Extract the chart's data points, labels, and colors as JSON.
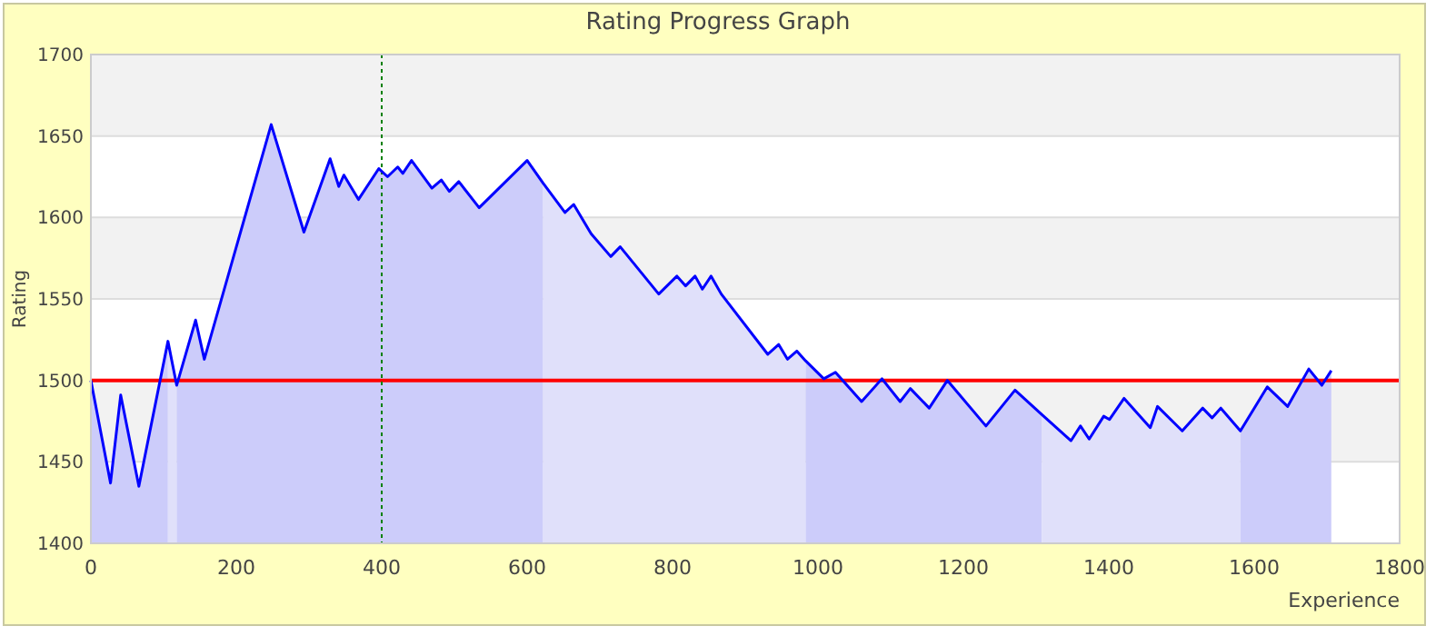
{
  "chart_data": {
    "type": "area",
    "title": "Rating Progress Graph",
    "xlabel": "Experience",
    "ylabel": "Rating",
    "xlim": [
      0,
      1800
    ],
    "xticks": [
      0,
      200,
      400,
      600,
      800,
      1000,
      1200,
      1400,
      1600,
      1800
    ],
    "ylim": [
      1400,
      1700
    ],
    "yticks": [
      1400,
      1450,
      1500,
      1550,
      1600,
      1650,
      1700
    ],
    "grid": "y",
    "ref_lines": [
      {
        "axis": "y",
        "value": 1500,
        "color": "#ff0000",
        "line_style": "solid"
      },
      {
        "axis": "x",
        "value": 400,
        "color": "#008000",
        "line_style": "dotted"
      }
    ],
    "series": [
      {
        "color": "#ccccfa",
        "x": [
          0,
          27,
          41,
          66,
          106
        ],
        "values": [
          1500,
          1437,
          1491,
          1435,
          1524
        ]
      },
      {
        "color": "#e0e0fa",
        "x": [
          106,
          118
        ],
        "values": [
          1524,
          1497
        ]
      },
      {
        "color": "#ccccfa",
        "x": [
          118,
          144,
          156,
          248,
          293,
          329,
          341,
          348,
          368,
          396,
          408,
          422,
          429,
          441,
          469,
          482,
          493,
          506,
          534,
          600,
          622
        ],
        "values": [
          1497,
          1537,
          1513,
          1657,
          1591,
          1636,
          1619,
          1626,
          1611,
          1630,
          1625,
          1631,
          1627,
          1635,
          1618,
          1623,
          1616,
          1622,
          1606,
          1635,
          1621
        ]
      },
      {
        "color": "#e0e0fa",
        "x": [
          622,
          652,
          664,
          688,
          715,
          728,
          781,
          806,
          818,
          831,
          841,
          853,
          867,
          931,
          946,
          958,
          971,
          983
        ],
        "values": [
          1621,
          1603,
          1608,
          1590,
          1576,
          1582,
          1553,
          1564,
          1558,
          1564,
          1556,
          1564,
          1553,
          1516,
          1522,
          1513,
          1518,
          1512
        ]
      },
      {
        "color": "#ccccfa",
        "x": [
          983,
          1008,
          1024,
          1060,
          1088,
          1113,
          1127,
          1153,
          1178,
          1231,
          1271,
          1308
        ],
        "values": [
          1512,
          1501,
          1505,
          1487,
          1501,
          1487,
          1495,
          1483,
          1500,
          1472,
          1494,
          1479
        ]
      },
      {
        "color": "#e0e0fa",
        "x": [
          1308,
          1348,
          1361,
          1373,
          1393,
          1401,
          1421,
          1457,
          1467,
          1501,
          1529,
          1542,
          1554,
          1581
        ],
        "values": [
          1479,
          1463,
          1472,
          1464,
          1478,
          1476,
          1489,
          1471,
          1484,
          1469,
          1483,
          1477,
          1483,
          1469
        ]
      },
      {
        "color": "#ccccfa",
        "x": [
          1581,
          1618,
          1646,
          1675,
          1693,
          1706
        ],
        "values": [
          1469,
          1496,
          1484,
          1507,
          1497,
          1506
        ]
      },
      {
        "type": "line",
        "color": "#0000ff",
        "line_style": "solid",
        "marker": "none",
        "x": [
          0,
          27,
          41,
          66,
          106,
          118,
          144,
          156,
          248,
          293,
          329,
          341,
          348,
          368,
          396,
          408,
          422,
          429,
          441,
          469,
          482,
          493,
          506,
          534,
          600,
          622,
          652,
          664,
          688,
          715,
          728,
          781,
          806,
          818,
          831,
          841,
          853,
          867,
          931,
          946,
          958,
          971,
          983,
          1008,
          1024,
          1060,
          1088,
          1113,
          1127,
          1153,
          1178,
          1231,
          1271,
          1308,
          1348,
          1361,
          1373,
          1393,
          1401,
          1421,
          1457,
          1467,
          1501,
          1529,
          1542,
          1554,
          1581,
          1618,
          1646,
          1675,
          1693,
          1706
        ],
        "values": [
          1500,
          1437,
          1491,
          1435,
          1524,
          1497,
          1537,
          1513,
          1657,
          1591,
          1636,
          1619,
          1626,
          1611,
          1630,
          1625,
          1631,
          1627,
          1635,
          1618,
          1623,
          1616,
          1622,
          1606,
          1635,
          1621,
          1603,
          1608,
          1590,
          1576,
          1582,
          1553,
          1564,
          1558,
          1564,
          1556,
          1564,
          1553,
          1516,
          1522,
          1513,
          1518,
          1512,
          1501,
          1505,
          1487,
          1501,
          1487,
          1495,
          1483,
          1500,
          1472,
          1494,
          1479,
          1463,
          1472,
          1464,
          1478,
          1476,
          1489,
          1471,
          1484,
          1469,
          1483,
          1477,
          1483,
          1469,
          1496,
          1484,
          1507,
          1497,
          1506
        ]
      }
    ]
  }
}
